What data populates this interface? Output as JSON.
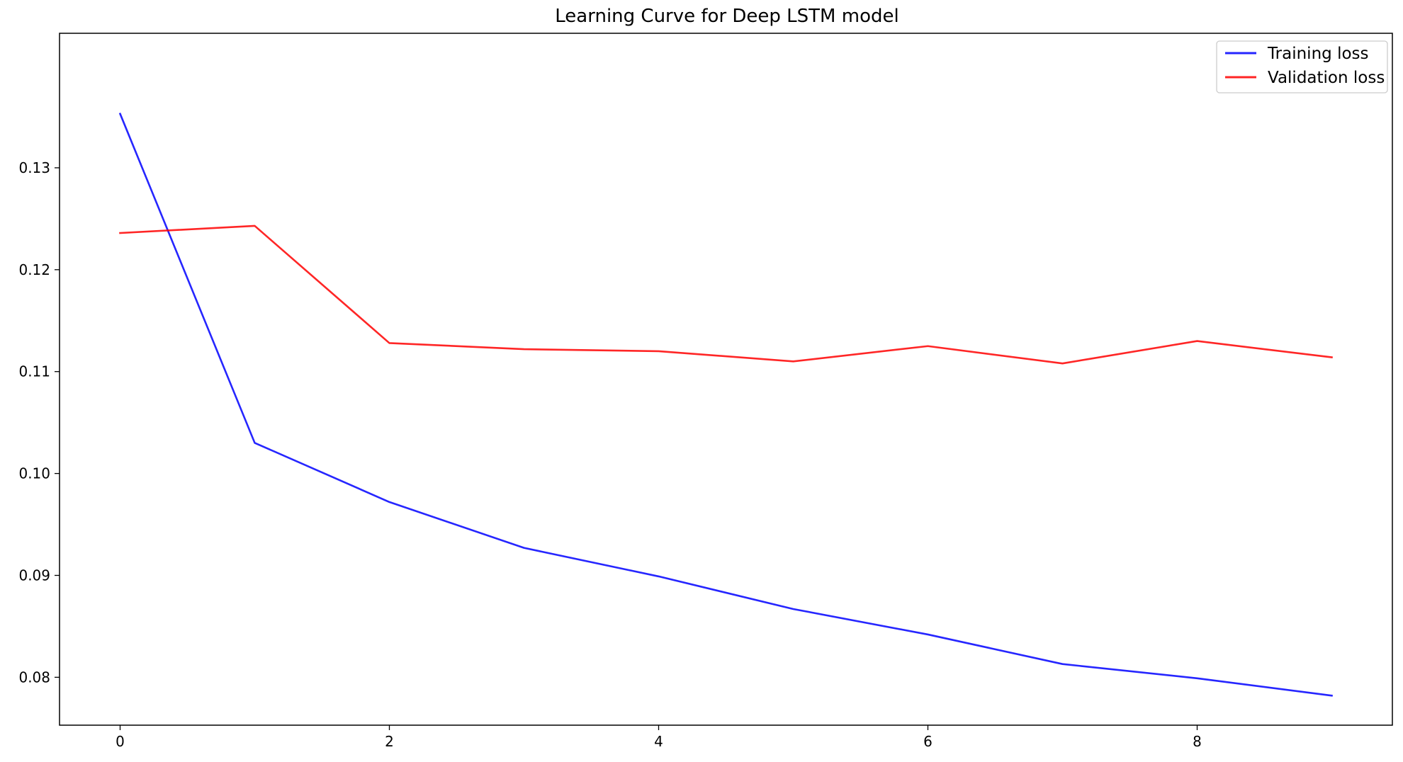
{
  "chart_data": {
    "type": "line",
    "title": "Learning Curve for Deep LSTM model",
    "xlabel": "",
    "ylabel": "",
    "x": [
      0,
      1,
      2,
      3,
      4,
      5,
      6,
      7,
      8,
      9
    ],
    "series": [
      {
        "name": "Training loss",
        "color": "#0000ff",
        "values": [
          0.1353,
          0.103,
          0.0972,
          0.0927,
          0.0899,
          0.0867,
          0.0842,
          0.0813,
          0.0799,
          0.0782
        ]
      },
      {
        "name": "Validation loss",
        "color": "#ff0000",
        "values": [
          0.1236,
          0.1243,
          0.1128,
          0.1122,
          0.112,
          0.111,
          0.1125,
          0.1108,
          0.113,
          0.1114
        ]
      }
    ],
    "xlim": [
      -0.45,
      9.45
    ],
    "ylim": [
      0.0753,
      0.1432
    ],
    "xticks": [
      0,
      2,
      4,
      6,
      8
    ],
    "xtick_labels": [
      "0",
      "2",
      "4",
      "6",
      "8"
    ],
    "yticks": [
      0.08,
      0.09,
      0.1,
      0.11,
      0.12,
      0.13
    ],
    "ytick_labels": [
      "0.08",
      "0.09",
      "0.10",
      "0.11",
      "0.12",
      "0.13"
    ],
    "grid": false,
    "legend_position": "top-right"
  }
}
